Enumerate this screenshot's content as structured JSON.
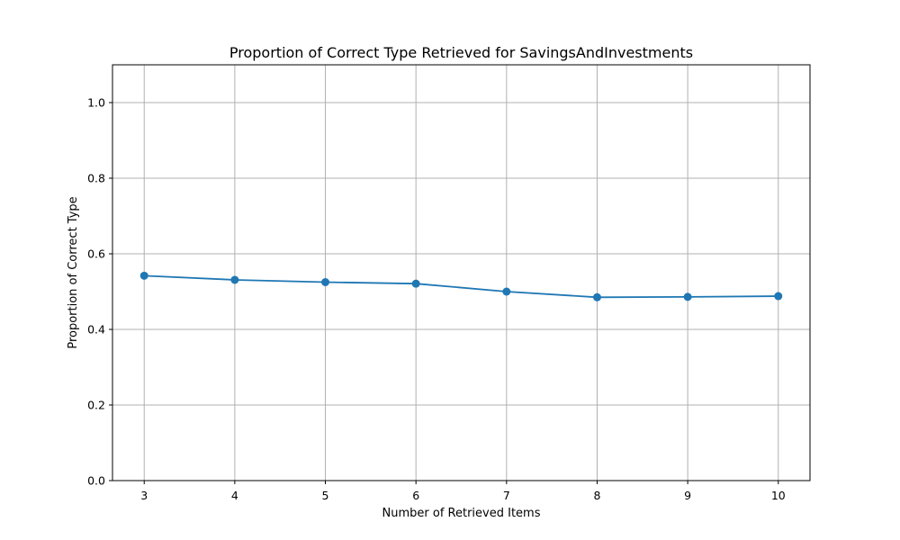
{
  "chart_data": {
    "type": "line",
    "title": "Proportion of Correct Type Retrieved for SavingsAndInvestments",
    "xlabel": "Number of Retrieved Items",
    "ylabel": "Proportion of Correct Type",
    "x": [
      3,
      4,
      5,
      6,
      7,
      8,
      9,
      10
    ],
    "series": [
      {
        "values": [
          0.542,
          0.531,
          0.525,
          0.521,
          0.5,
          0.485,
          0.486,
          0.488
        ],
        "color": "#1f77b4",
        "marker": "circle"
      }
    ],
    "xlim": [
      2.65,
      10.35
    ],
    "ylim": [
      0,
      1.1
    ],
    "xticks": [
      3,
      4,
      5,
      6,
      7,
      8,
      9,
      10
    ],
    "yticks": [
      0.0,
      0.2,
      0.4,
      0.6,
      0.8,
      1.0
    ],
    "ytick_labels": [
      "0.0",
      "0.2",
      "0.4",
      "0.6",
      "0.8",
      "1.0"
    ],
    "grid": true,
    "legend": false
  }
}
